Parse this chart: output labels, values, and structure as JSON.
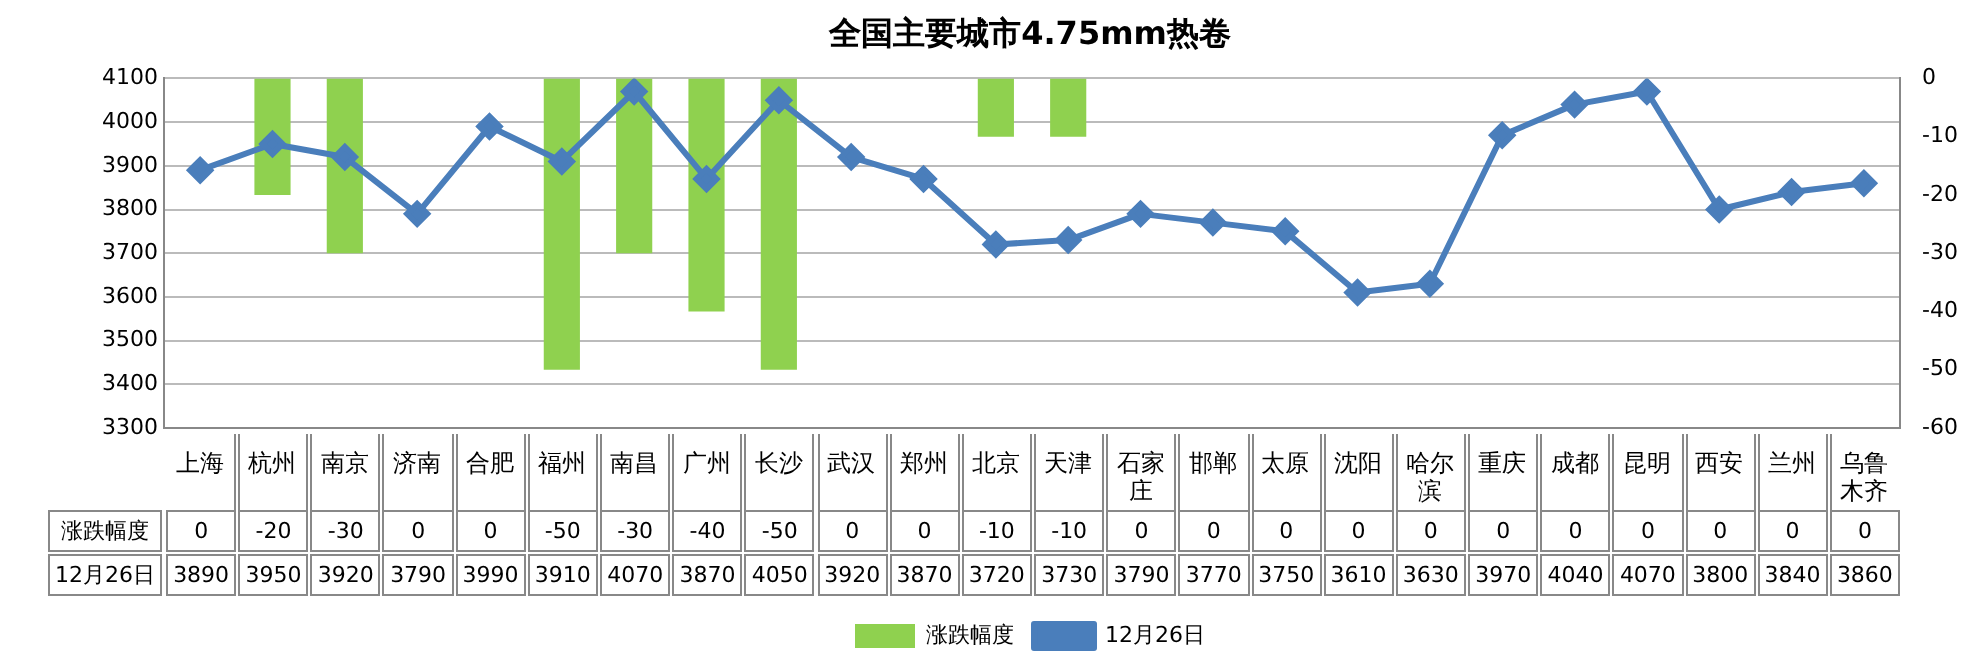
{
  "chart_data": {
    "type": "bar",
    "title": "全国主要城市4.75mm热卷",
    "categories": [
      "上海",
      "杭州",
      "南京",
      "济南",
      "合肥",
      "福州",
      "南昌",
      "广州",
      "长沙",
      "武汉",
      "郑州",
      "北京",
      "天津",
      "石家庄",
      "邯郸",
      "太原",
      "沈阳",
      "哈尔滨",
      "重庆",
      "成都",
      "昆明",
      "西安",
      "兰州",
      "乌鲁木齐"
    ],
    "series": [
      {
        "name": "涨跌幅度",
        "axis": "y2",
        "color": "#8fd14f",
        "values": [
          0,
          -20,
          -30,
          0,
          0,
          -50,
          -30,
          -40,
          -50,
          0,
          0,
          -10,
          -10,
          0,
          0,
          0,
          0,
          0,
          0,
          0,
          0,
          0,
          0,
          0
        ]
      },
      {
        "name": "12月26日",
        "type": "line",
        "color": "#4a7ebb",
        "values": [
          3890,
          3950,
          3920,
          3790,
          3990,
          3910,
          4070,
          3870,
          4050,
          3920,
          3870,
          3720,
          3730,
          3790,
          3770,
          3750,
          3610,
          3630,
          3970,
          4040,
          4070,
          3800,
          3840,
          3860
        ]
      }
    ],
    "ylim": [
      3300,
      4100
    ],
    "yticks": [
      3300,
      3400,
      3500,
      3600,
      3700,
      3800,
      3900,
      4000,
      4100
    ],
    "y2lim": [
      -60,
      0
    ],
    "y2ticks": [
      -60,
      -50,
      -40,
      -30,
      -20,
      -10,
      0
    ],
    "grid": "y",
    "legend": "bottom",
    "marker": "diamond",
    "data_labels": true
  }
}
